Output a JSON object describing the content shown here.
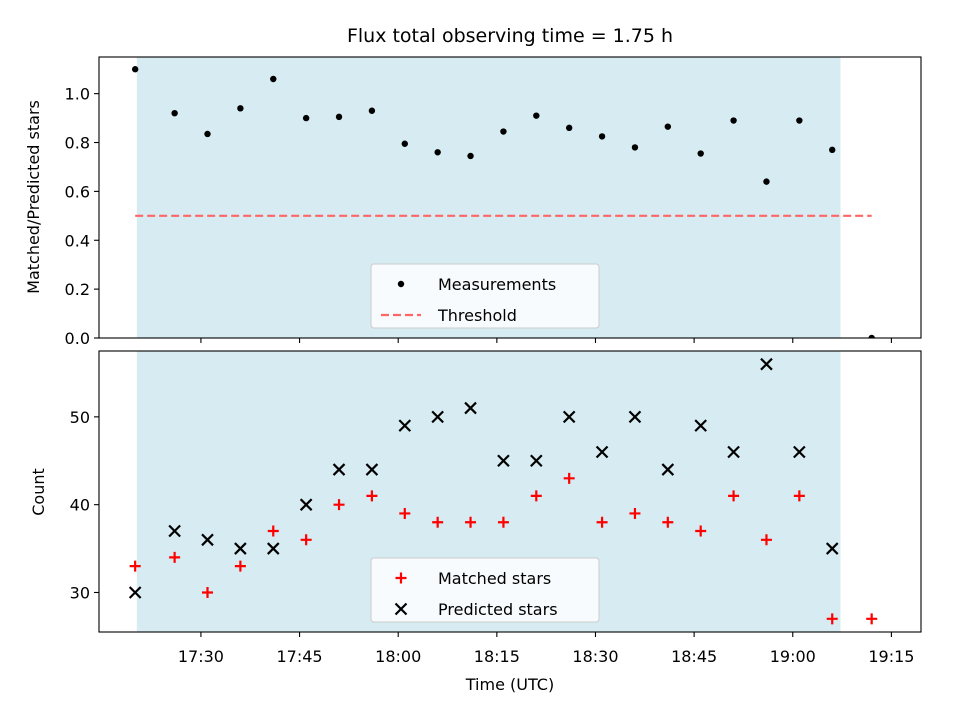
{
  "colors": {
    "observing_window": "#add8e6",
    "threshold": "#ff6666",
    "measurement": "#000000",
    "matched": "#ff0000",
    "predicted": "#000000"
  },
  "chart_data": [
    {
      "type": "scatter",
      "title": "Flux total observing time = 1.75 h",
      "xlabel": "",
      "ylabel": "Matched/Predicted stars",
      "xlim": [
        "17:14:30",
        "19:19:30"
      ],
      "ylim": [
        0,
        1.15
      ],
      "y_ticks": [
        0.0,
        0.2,
        0.4,
        0.6,
        0.8,
        1.0
      ],
      "y_tick_labels": [
        "0.0",
        "0.2",
        "0.4",
        "0.6",
        "0.8",
        "1.0"
      ],
      "observing_window": [
        "17:20:15",
        "19:07:15"
      ],
      "series": [
        {
          "name": "Measurements",
          "marker": "dot",
          "points": [
            {
              "x": "17:20",
              "y": 1.1
            },
            {
              "x": "17:26",
              "y": 0.92
            },
            {
              "x": "17:31",
              "y": 0.835
            },
            {
              "x": "17:36",
              "y": 0.94
            },
            {
              "x": "17:41",
              "y": 1.06
            },
            {
              "x": "17:46",
              "y": 0.9
            },
            {
              "x": "17:51",
              "y": 0.905
            },
            {
              "x": "17:56",
              "y": 0.93
            },
            {
              "x": "18:01",
              "y": 0.795
            },
            {
              "x": "18:06",
              "y": 0.76
            },
            {
              "x": "18:11",
              "y": 0.745
            },
            {
              "x": "18:16",
              "y": 0.845
            },
            {
              "x": "18:21",
              "y": 0.91
            },
            {
              "x": "18:26",
              "y": 0.86
            },
            {
              "x": "18:31",
              "y": 0.825
            },
            {
              "x": "18:36",
              "y": 0.78
            },
            {
              "x": "18:41",
              "y": 0.865
            },
            {
              "x": "18:46",
              "y": 0.755
            },
            {
              "x": "18:51",
              "y": 0.89
            },
            {
              "x": "18:56",
              "y": 0.64
            },
            {
              "x": "19:01",
              "y": 0.89
            },
            {
              "x": "19:06",
              "y": 0.77
            },
            {
              "x": "19:12",
              "y": 0.0
            }
          ]
        },
        {
          "name": "Threshold",
          "style": "dashed",
          "points": [
            {
              "x": "17:20",
              "y": 0.5
            },
            {
              "x": "19:12",
              "y": 0.5
            }
          ]
        }
      ],
      "legend_position": "lower-center"
    },
    {
      "type": "scatter",
      "title": "",
      "xlabel": "Time (UTC)",
      "ylabel": "Count",
      "xlim": [
        "17:14:30",
        "19:19:30"
      ],
      "ylim": [
        25.5,
        57.5
      ],
      "y_ticks": [
        30,
        40,
        50
      ],
      "y_tick_labels": [
        "30",
        "40",
        "50"
      ],
      "x_ticks": [
        "17:30",
        "17:45",
        "18:00",
        "18:15",
        "18:30",
        "18:45",
        "19:00",
        "19:15"
      ],
      "x_tick_labels": [
        "17:30",
        "17:45",
        "18:00",
        "18:15",
        "18:30",
        "18:45",
        "19:00",
        "19:15"
      ],
      "observing_window": [
        "17:20:15",
        "19:07:15"
      ],
      "series": [
        {
          "name": "Matched stars",
          "marker": "plus",
          "points": [
            {
              "x": "17:20",
              "y": 33
            },
            {
              "x": "17:26",
              "y": 34
            },
            {
              "x": "17:31",
              "y": 30
            },
            {
              "x": "17:36",
              "y": 33
            },
            {
              "x": "17:41",
              "y": 37
            },
            {
              "x": "17:46",
              "y": 36
            },
            {
              "x": "17:51",
              "y": 40
            },
            {
              "x": "17:56",
              "y": 41
            },
            {
              "x": "18:01",
              "y": 39
            },
            {
              "x": "18:06",
              "y": 38
            },
            {
              "x": "18:11",
              "y": 38
            },
            {
              "x": "18:16",
              "y": 38
            },
            {
              "x": "18:21",
              "y": 41
            },
            {
              "x": "18:26",
              "y": 43
            },
            {
              "x": "18:31",
              "y": 38
            },
            {
              "x": "18:36",
              "y": 39
            },
            {
              "x": "18:41",
              "y": 38
            },
            {
              "x": "18:46",
              "y": 37
            },
            {
              "x": "18:51",
              "y": 41
            },
            {
              "x": "18:56",
              "y": 36
            },
            {
              "x": "19:01",
              "y": 41
            },
            {
              "x": "19:06",
              "y": 27
            },
            {
              "x": "19:12",
              "y": 27
            }
          ]
        },
        {
          "name": "Predicted stars",
          "marker": "x",
          "points": [
            {
              "x": "17:20",
              "y": 30
            },
            {
              "x": "17:26",
              "y": 37
            },
            {
              "x": "17:31",
              "y": 36
            },
            {
              "x": "17:36",
              "y": 35
            },
            {
              "x": "17:41",
              "y": 35
            },
            {
              "x": "17:46",
              "y": 40
            },
            {
              "x": "17:51",
              "y": 44
            },
            {
              "x": "17:56",
              "y": 44
            },
            {
              "x": "18:01",
              "y": 49
            },
            {
              "x": "18:06",
              "y": 50
            },
            {
              "x": "18:11",
              "y": 51
            },
            {
              "x": "18:16",
              "y": 45
            },
            {
              "x": "18:21",
              "y": 45
            },
            {
              "x": "18:26",
              "y": 50
            },
            {
              "x": "18:31",
              "y": 46
            },
            {
              "x": "18:36",
              "y": 50
            },
            {
              "x": "18:41",
              "y": 44
            },
            {
              "x": "18:46",
              "y": 49
            },
            {
              "x": "18:51",
              "y": 46
            },
            {
              "x": "18:56",
              "y": 56
            },
            {
              "x": "19:01",
              "y": 46
            },
            {
              "x": "19:06",
              "y": 35
            }
          ]
        }
      ],
      "legend_position": "lower-center"
    }
  ]
}
